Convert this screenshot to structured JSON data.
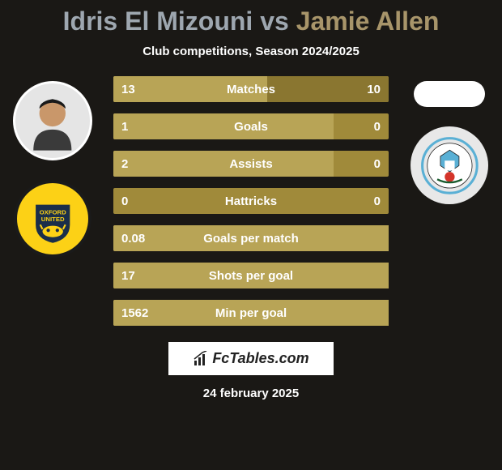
{
  "title": {
    "player1": "Idris El Mizouni",
    "vs": "vs",
    "player2": "Jamie Allen",
    "p1_color": "#9ea7b0",
    "p2_color": "#a8956a"
  },
  "subtitle": "Club competitions, Season 2024/2025",
  "bars": {
    "base_color": "#a08a3a",
    "fill_l_color": "#b8a456",
    "fill_r_color": "#8a7630",
    "rows": [
      {
        "metric": "Matches",
        "l": "13",
        "r": "10",
        "l_pct": 56,
        "r_pct": 44
      },
      {
        "metric": "Goals",
        "l": "1",
        "r": "0",
        "l_pct": 80,
        "r_pct": 0
      },
      {
        "metric": "Assists",
        "l": "2",
        "r": "0",
        "l_pct": 80,
        "r_pct": 0
      },
      {
        "metric": "Hattricks",
        "l": "0",
        "r": "0",
        "l_pct": 0,
        "r_pct": 0
      },
      {
        "metric": "Goals per match",
        "l": "0.08",
        "r": "",
        "l_pct": 100,
        "r_pct": 0
      },
      {
        "metric": "Shots per goal",
        "l": "17",
        "r": "",
        "l_pct": 100,
        "r_pct": 0
      },
      {
        "metric": "Min per goal",
        "l": "1562",
        "r": "",
        "l_pct": 100,
        "r_pct": 0
      }
    ]
  },
  "left": {
    "avatar_bg": "#e5e5e5",
    "badge_bg": "#fcd116",
    "badge_name": "oxford-united-badge"
  },
  "right": {
    "avatar_bg": "#ffffff",
    "badge_bg": "#e8e8e8",
    "badge_name": "coventry-city-badge"
  },
  "footer": {
    "logo_text": "FcTables.com",
    "date": "24 february 2025"
  },
  "colors": {
    "page_bg": "#1a1815",
    "text": "#ffffff"
  }
}
